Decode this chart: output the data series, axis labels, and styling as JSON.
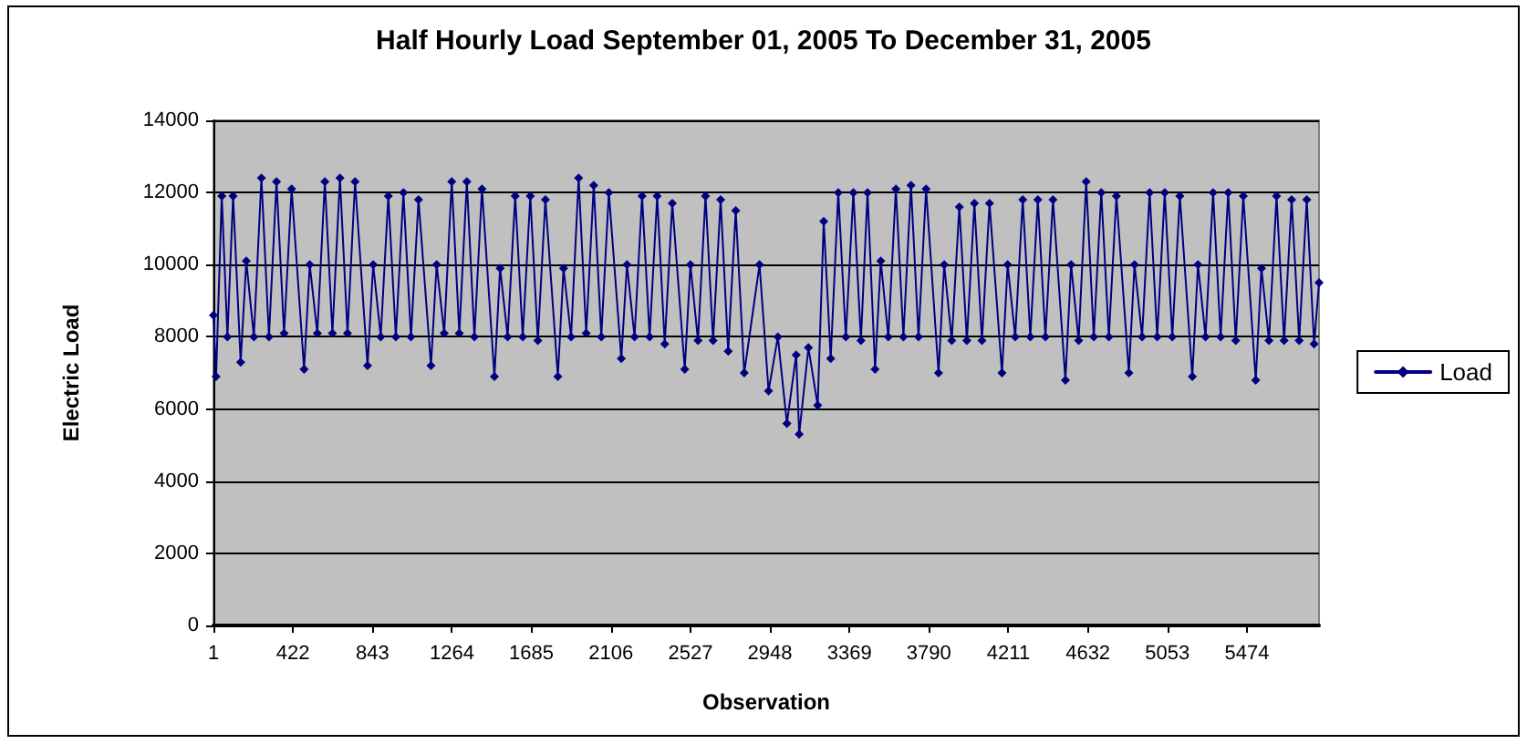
{
  "chart_data": {
    "type": "line",
    "title": "Half Hourly Load September 01, 2005 To December 31, 2005",
    "xlabel": "Observation",
    "ylabel": "Electric Load",
    "x": [
      1,
      15,
      45,
      75,
      105,
      145,
      175,
      215,
      255,
      295,
      335,
      375,
      415,
      481,
      511,
      551,
      591,
      631,
      671,
      711,
      751,
      817,
      847,
      887,
      927,
      967,
      1007,
      1047,
      1087,
      1153,
      1183,
      1223,
      1263,
      1303,
      1343,
      1383,
      1423,
      1489,
      1519,
      1559,
      1599,
      1639,
      1679,
      1719,
      1759,
      1825,
      1855,
      1895,
      1935,
      1975,
      2015,
      2055,
      2095,
      2161,
      2191,
      2231,
      2271,
      2311,
      2351,
      2391,
      2431,
      2497,
      2527,
      2567,
      2607,
      2647,
      2687,
      2727,
      2767,
      2812,
      2893,
      2941,
      2990,
      3038,
      3087,
      3103,
      3152,
      3201,
      3233,
      3270,
      3310,
      3350,
      3390,
      3430,
      3465,
      3505,
      3535,
      3575,
      3615,
      3655,
      3695,
      3735,
      3775,
      3841,
      3871,
      3911,
      3951,
      3991,
      4031,
      4071,
      4111,
      4177,
      4207,
      4247,
      4287,
      4327,
      4367,
      4407,
      4447,
      4513,
      4543,
      4583,
      4623,
      4663,
      4703,
      4743,
      4783,
      4849,
      4879,
      4919,
      4959,
      4999,
      5039,
      5079,
      5119,
      5185,
      5215,
      5255,
      5295,
      5335,
      5375,
      5415,
      5455,
      5521,
      5551,
      5591,
      5631,
      5671,
      5711,
      5751,
      5791,
      5830,
      5856
    ],
    "series": [
      {
        "name": "Load",
        "color": "#000080",
        "values": [
          8600,
          6900,
          11900,
          8000,
          11900,
          7300,
          10100,
          8000,
          12400,
          8000,
          12300,
          8100,
          12100,
          7100,
          10000,
          8100,
          12300,
          8100,
          12400,
          8100,
          12300,
          7200,
          10000,
          8000,
          11900,
          8000,
          12000,
          8000,
          11800,
          7200,
          10000,
          8100,
          12300,
          8100,
          12300,
          8000,
          12100,
          6900,
          9900,
          8000,
          11900,
          8000,
          11900,
          7900,
          11800,
          6900,
          9900,
          8000,
          12400,
          8100,
          12200,
          8000,
          12000,
          7400,
          10000,
          8000,
          11900,
          8000,
          11900,
          7800,
          11700,
          7100,
          10000,
          7900,
          11900,
          7900,
          11800,
          7600,
          11500,
          7000,
          10000,
          6500,
          8000,
          5600,
          7500,
          5300,
          7700,
          6100,
          11200,
          7400,
          12000,
          8000,
          12000,
          7900,
          12000,
          7100,
          10100,
          8000,
          12100,
          8000,
          12200,
          8000,
          12100,
          7000,
          10000,
          7900,
          11600,
          7900,
          11700,
          7900,
          11700,
          7000,
          10000,
          8000,
          11800,
          8000,
          11800,
          8000,
          11800,
          6800,
          10000,
          7900,
          12300,
          8000,
          12000,
          8000,
          11900,
          7000,
          10000,
          8000,
          12000,
          8000,
          12000,
          8000,
          11900,
          6900,
          10000,
          8000,
          12000,
          8000,
          12000,
          7900,
          11900,
          6800,
          9900,
          7900,
          11900,
          7900,
          11800,
          7900,
          11800,
          7800,
          9500
        ]
      }
    ],
    "xlim": [
      1,
      5856
    ],
    "xticks": [
      1,
      422,
      843,
      1264,
      1685,
      2106,
      2527,
      2948,
      3369,
      3790,
      4211,
      4632,
      5053,
      5474
    ],
    "ylim": [
      0,
      14000
    ],
    "yticks": [
      0,
      2000,
      4000,
      6000,
      8000,
      10000,
      12000,
      14000
    ],
    "grid": "y",
    "legend": "right",
    "marker": "diamond",
    "line_style": "solid"
  }
}
